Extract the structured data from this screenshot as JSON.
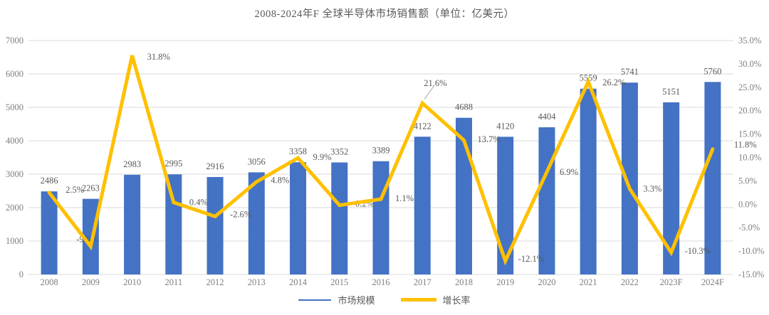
{
  "title": "2008-2024年F 全球半导体市场销售额（单位：亿美元）",
  "chart_data": {
    "type": "bar",
    "subtype": "combo-bar-line-dual-axis",
    "title": "2008-2024年F 全球半导体市场销售额（单位：亿美元）",
    "categories": [
      "2008",
      "2009",
      "2010",
      "2011",
      "2012",
      "2013",
      "2014",
      "2015",
      "2016",
      "2017",
      "2018",
      "2019",
      "2020",
      "2021",
      "2022",
      "2023F",
      "2024F"
    ],
    "series": [
      {
        "name": "市场规模",
        "type": "bar",
        "axis": "left",
        "color": "#4472C4",
        "values": [
          2486,
          2263,
          2983,
          2995,
          2916,
          3056,
          3358,
          3352,
          3389,
          4122,
          4688,
          4120,
          4404,
          5559,
          5741,
          5151,
          5760
        ],
        "value_labels": [
          "2486",
          "2263",
          "2983",
          "2995",
          "2916",
          "3056",
          "3358",
          "3352",
          "3389",
          "4122",
          "4688",
          "4120",
          "4404",
          "5559",
          "5741",
          "5151",
          "5760"
        ]
      },
      {
        "name": "增长率",
        "type": "line",
        "axis": "right",
        "color": "#FFC000",
        "values": [
          2.5,
          -9.0,
          31.8,
          0.4,
          -2.6,
          4.8,
          9.9,
          -0.2,
          1.1,
          21.6,
          13.7,
          -12.1,
          6.9,
          26.2,
          3.3,
          -10.3,
          11.8
        ],
        "value_labels": [
          "2.5%",
          "-9.0%",
          "31.8%",
          "0.4%",
          "-2.6%",
          "4.8%",
          "9.9%",
          "-0.2%",
          "1.1%",
          "21.6%",
          "13.7%",
          "-12.1%",
          "6.9%",
          "26.2%",
          "3.3%",
          "-10.3%",
          "11.8%"
        ]
      }
    ],
    "left_axis": {
      "min": 0,
      "max": 7000,
      "step": 1000,
      "tick_labels": [
        "0",
        "1000",
        "2000",
        "3000",
        "4000",
        "5000",
        "6000",
        "7000"
      ]
    },
    "right_axis": {
      "min": -15,
      "max": 35,
      "step": 5,
      "tick_labels": [
        "35.0%",
        "30.0%",
        "25.0%",
        "20.0%",
        "15.0%",
        "10.0%",
        "5.0%",
        "0.0%",
        "-5.0%",
        "-10.0%",
        "-15.0%"
      ]
    },
    "legend": {
      "position": "bottom",
      "items": [
        {
          "label": "市场规模",
          "color": "#4472C4"
        },
        {
          "label": "增长率",
          "color": "#FFC000"
        }
      ]
    },
    "grid": "horizontal",
    "colors": {
      "bar": "#4472C4",
      "line": "#FFC000",
      "grid": "#D9D9D9",
      "axis_text": "#7F7F7F",
      "label_text": "#595959",
      "leader": "#A6A6A6",
      "background": "#FFFFFF"
    }
  }
}
